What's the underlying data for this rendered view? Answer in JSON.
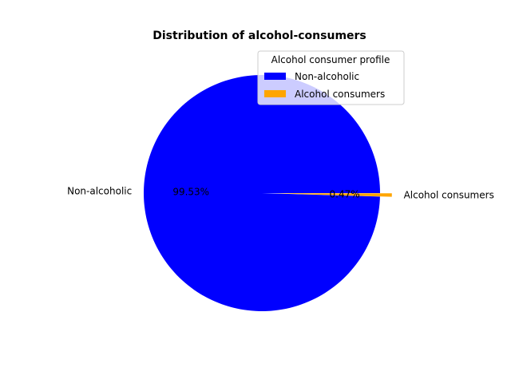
{
  "chart_data": {
    "type": "pie",
    "title": "Distribution of alcohol-consumers",
    "slices": [
      {
        "label": "Non-alcoholic",
        "value": 99.53,
        "pct_text": "99.53%",
        "color": "#0000ff",
        "explode": 0
      },
      {
        "label": "Alcohol consumers",
        "value": 0.47,
        "pct_text": "0.47%",
        "color": "#ffa500",
        "explode": 0.1
      }
    ],
    "legend": {
      "title": "Alcohol consumer profile",
      "placement": "top-right",
      "entries": [
        "Non-alcoholic",
        "Alcohol consumers"
      ]
    }
  }
}
